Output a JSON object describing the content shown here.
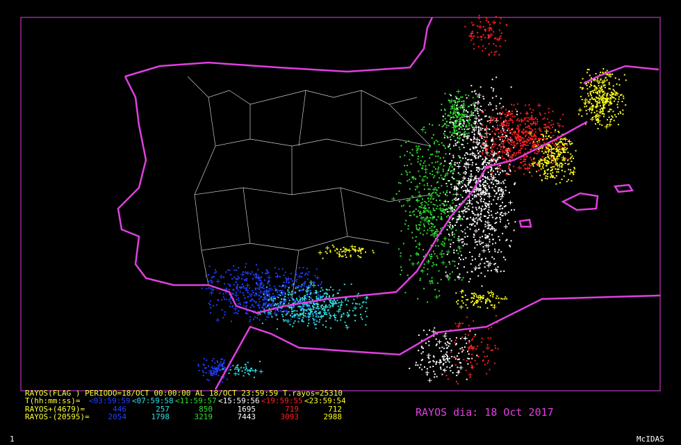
{
  "header": {
    "line1": "RAYOS(FLAG ) PERIODO=18/OCT 00:00:00 AL 18/OCT 23:59:59  T.rayos=25310",
    "time_label": "T(hh:mm:ss)=",
    "periods": [
      "<03:59:59",
      "<07:59:58",
      "<11:59:57",
      "<15:59:56",
      "<19:59:55",
      "<23:59:54"
    ],
    "period_colors": [
      "#2040ff",
      "#30e0e0",
      "#30e030",
      "#ffffff",
      "#ff2020",
      "#ffff20"
    ],
    "positive_label": "RAYOS+(4679)=",
    "positive": [
      "446",
      "257",
      "850",
      "1695",
      "719",
      "712"
    ],
    "negative_label": "RAYOS-(20595)=",
    "negative": [
      "2054",
      "1798",
      "3219",
      "7443",
      "3093",
      "2988"
    ]
  },
  "title": "RAYOS dia: 18 Oct 2017",
  "footer": {
    "page": "1",
    "brand": "McIDAS"
  }
}
